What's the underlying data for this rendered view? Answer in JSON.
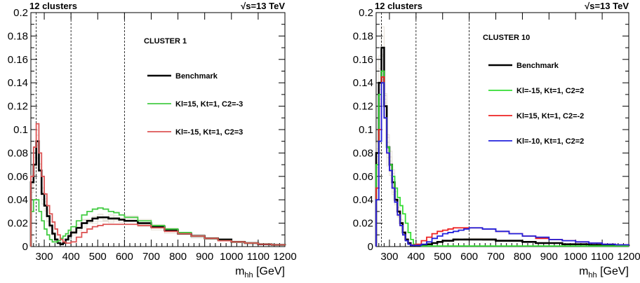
{
  "chart_data": [
    {
      "type": "line",
      "header_left": "12 clusters",
      "header_right": "√s=13 TeV",
      "cluster_label": "CLUSTER 1",
      "xlabel_main": "m",
      "xlabel_sub": "hh",
      "xlabel_unit": " [GeV]",
      "xlim": [
        250,
        1200
      ],
      "ylim": [
        0,
        0.2
      ],
      "x_ticks": [
        "300",
        "400",
        "500",
        "600",
        "700",
        "800",
        "900",
        "1000",
        "1100",
        "1200"
      ],
      "x_tick_values": [
        300,
        400,
        500,
        600,
        700,
        800,
        900,
        1000,
        1100,
        1200
      ],
      "y_ticks": [
        "0",
        "0.02",
        "0.04",
        "0.06",
        "0.08",
        "0.1",
        "0.12",
        "0.14",
        "0.16",
        "0.18",
        "0.2"
      ],
      "y_tick_values": [
        0,
        0.02,
        0.04,
        0.06,
        0.08,
        0.1,
        0.12,
        0.14,
        0.16,
        0.18,
        0.2
      ],
      "dashed_lines_x": [
        270,
        400,
        600
      ],
      "legend": [
        "Benchmark",
        "Kl=15, Kt=1, C2=-3",
        "Kl=-15, Kt=1, C2=3"
      ],
      "series": [
        {
          "name": "Benchmark",
          "color": "#000000",
          "x": [
            250,
            260,
            270,
            280,
            290,
            300,
            310,
            320,
            330,
            340,
            350,
            360,
            370,
            380,
            390,
            400,
            420,
            440,
            460,
            480,
            500,
            520,
            540,
            560,
            580,
            600,
            650,
            700,
            750,
            800,
            850,
            900,
            950,
            1000,
            1050,
            1100,
            1150,
            1200
          ],
          "y": [
            0.055,
            0.07,
            0.09,
            0.065,
            0.045,
            0.035,
            0.026,
            0.018,
            0.011,
            0.006,
            0.003,
            0.002,
            0.003,
            0.006,
            0.009,
            0.012,
            0.016,
            0.02,
            0.022,
            0.024,
            0.025,
            0.025,
            0.024,
            0.024,
            0.023,
            0.022,
            0.02,
            0.017,
            0.014,
            0.011,
            0.009,
            0.007,
            0.006,
            0.004,
            0.003,
            0.002,
            0.0015,
            0.001
          ]
        },
        {
          "name": "Kl=15, Kt=1, C2=-3",
          "color": "#44cc44",
          "x": [
            250,
            260,
            270,
            280,
            290,
            300,
            310,
            320,
            330,
            340,
            350,
            360,
            370,
            380,
            390,
            400,
            420,
            440,
            460,
            480,
            500,
            520,
            540,
            560,
            580,
            600,
            650,
            700,
            750,
            800,
            850,
            900,
            950,
            1000,
            1050,
            1100,
            1150,
            1200
          ],
          "y": [
            0.03,
            0.04,
            0.04,
            0.03,
            0.022,
            0.015,
            0.01,
            0.006,
            0.004,
            0.004,
            0.005,
            0.007,
            0.009,
            0.011,
            0.014,
            0.017,
            0.022,
            0.027,
            0.03,
            0.032,
            0.033,
            0.032,
            0.03,
            0.029,
            0.027,
            0.025,
            0.022,
            0.018,
            0.015,
            0.012,
            0.009,
            0.007,
            0.005,
            0.004,
            0.003,
            0.002,
            0.0015,
            0.001
          ]
        },
        {
          "name": "Kl=-15, Kt=1, C2=3",
          "color": "#dd5555",
          "x": [
            250,
            260,
            270,
            280,
            290,
            300,
            310,
            320,
            330,
            340,
            350,
            360,
            370,
            380,
            390,
            400,
            420,
            440,
            460,
            480,
            500,
            520,
            540,
            560,
            580,
            600,
            650,
            700,
            750,
            800,
            850,
            900,
            950,
            1000,
            1050,
            1100,
            1150,
            1200
          ],
          "y": [
            0.06,
            0.085,
            0.105,
            0.08,
            0.06,
            0.045,
            0.035,
            0.028,
            0.021,
            0.015,
            0.01,
            0.006,
            0.004,
            0.003,
            0.003,
            0.004,
            0.008,
            0.012,
            0.015,
            0.017,
            0.018,
            0.019,
            0.019,
            0.019,
            0.019,
            0.019,
            0.018,
            0.016,
            0.013,
            0.011,
            0.009,
            0.007,
            0.005,
            0.004,
            0.003,
            0.002,
            0.0015,
            0.001
          ]
        }
      ]
    },
    {
      "type": "line",
      "header_left": "12 clusters",
      "header_right": "√s=13 TeV",
      "cluster_label": "CLUSTER 10",
      "xlabel_main": "m",
      "xlabel_sub": "hh",
      "xlabel_unit": " [GeV]",
      "xlim": [
        250,
        1200
      ],
      "ylim": [
        0,
        0.2
      ],
      "x_ticks": [
        "300",
        "400",
        "500",
        "600",
        "700",
        "800",
        "900",
        "1000",
        "1100",
        "1200"
      ],
      "x_tick_values": [
        300,
        400,
        500,
        600,
        700,
        800,
        900,
        1000,
        1100,
        1200
      ],
      "y_ticks": [
        "0",
        "0.02",
        "0.04",
        "0.06",
        "0.08",
        "0.1",
        "0.12",
        "0.14",
        "0.16",
        "0.18",
        "0.2"
      ],
      "y_tick_values": [
        0,
        0.02,
        0.04,
        0.06,
        0.08,
        0.1,
        0.12,
        0.14,
        0.16,
        0.18,
        0.2
      ],
      "dashed_lines_x": [
        270,
        400,
        600
      ],
      "legend": [
        "Benchmark",
        "Kl=-15, Kt=1, C2=2",
        "Kl=15, Kt=1, C2=-2",
        "Kl=-10, Kt=1, C2=2"
      ],
      "series": [
        {
          "name": "Benchmark",
          "color": "#000000",
          "x": [
            250,
            260,
            270,
            280,
            290,
            300,
            310,
            320,
            330,
            340,
            350,
            360,
            370,
            380,
            390,
            400,
            420,
            440,
            460,
            480,
            500,
            520,
            540,
            560,
            580,
            600,
            650,
            700,
            750,
            800,
            850,
            900,
            950,
            1000,
            1050,
            1100,
            1150,
            1200
          ],
          "y": [
            0.08,
            0.14,
            0.17,
            0.12,
            0.085,
            0.07,
            0.055,
            0.04,
            0.03,
            0.02,
            0.012,
            0.006,
            0.003,
            0.001,
            0.0005,
            0.0005,
            0.001,
            0.002,
            0.003,
            0.004,
            0.005,
            0.005,
            0.006,
            0.006,
            0.006,
            0.006,
            0.006,
            0.005,
            0.005,
            0.004,
            0.003,
            0.003,
            0.002,
            0.002,
            0.0015,
            0.001,
            0.001,
            0.0005
          ]
        },
        {
          "name": "Kl=-15, Kt=1, C2=2",
          "color": "#33dd33",
          "x": [
            250,
            260,
            270,
            280,
            290,
            300,
            310,
            320,
            330,
            340,
            350,
            360,
            370,
            380,
            390,
            400,
            420,
            440,
            460,
            480,
            500,
            520,
            540,
            560,
            580,
            600,
            650,
            700,
            750,
            800,
            850,
            900,
            950,
            1000,
            1050,
            1100,
            1150,
            1200
          ],
          "y": [
            0.07,
            0.13,
            0.15,
            0.11,
            0.085,
            0.07,
            0.06,
            0.05,
            0.042,
            0.035,
            0.028,
            0.02,
            0.012,
            0.006,
            0.002,
            0.001,
            0.0005,
            0.0005,
            0.0005,
            0.0005,
            0.0005,
            0.0005,
            0.0005,
            0.0005,
            0.0005,
            0.0005,
            0.0005,
            0.0005,
            0.0005,
            0.0005,
            0.0005,
            0.0005,
            0.0005,
            0.0005,
            0.0005,
            0.0005,
            0.0005,
            0.0005
          ]
        },
        {
          "name": "Kl=15, Kt=1, C2=-2",
          "color": "#ee2222",
          "x": [
            250,
            260,
            270,
            280,
            290,
            300,
            310,
            320,
            330,
            340,
            350,
            360,
            370,
            380,
            390,
            400,
            420,
            440,
            460,
            480,
            500,
            520,
            540,
            560,
            580,
            600,
            650,
            700,
            750,
            800,
            850,
            900,
            950,
            1000,
            1050,
            1100,
            1150,
            1200
          ],
          "y": [
            0.05,
            0.1,
            0.145,
            0.11,
            0.08,
            0.065,
            0.05,
            0.038,
            0.027,
            0.018,
            0.01,
            0.005,
            0.002,
            0.001,
            0.0015,
            0.002,
            0.005,
            0.008,
            0.011,
            0.013,
            0.014,
            0.015,
            0.016,
            0.016,
            0.016,
            0.016,
            0.015,
            0.013,
            0.011,
            0.009,
            0.007,
            0.006,
            0.005,
            0.004,
            0.003,
            0.002,
            0.0015,
            0.001
          ]
        },
        {
          "name": "Kl=-10, Kt=1, C2=2",
          "color": "#2222dd",
          "x": [
            250,
            260,
            270,
            280,
            290,
            300,
            310,
            320,
            330,
            340,
            350,
            360,
            370,
            380,
            390,
            400,
            420,
            440,
            460,
            480,
            500,
            520,
            540,
            560,
            580,
            600,
            650,
            700,
            750,
            800,
            850,
            900,
            950,
            1000,
            1050,
            1100,
            1150,
            1200
          ],
          "y": [
            0.04,
            0.09,
            0.14,
            0.11,
            0.08,
            0.065,
            0.05,
            0.038,
            0.027,
            0.018,
            0.01,
            0.005,
            0.002,
            0.001,
            0.001,
            0.001,
            0.002,
            0.004,
            0.007,
            0.009,
            0.011,
            0.012,
            0.013,
            0.014,
            0.015,
            0.016,
            0.015,
            0.013,
            0.011,
            0.009,
            0.008,
            0.006,
            0.005,
            0.004,
            0.003,
            0.002,
            0.0015,
            0.001
          ]
        }
      ]
    }
  ]
}
